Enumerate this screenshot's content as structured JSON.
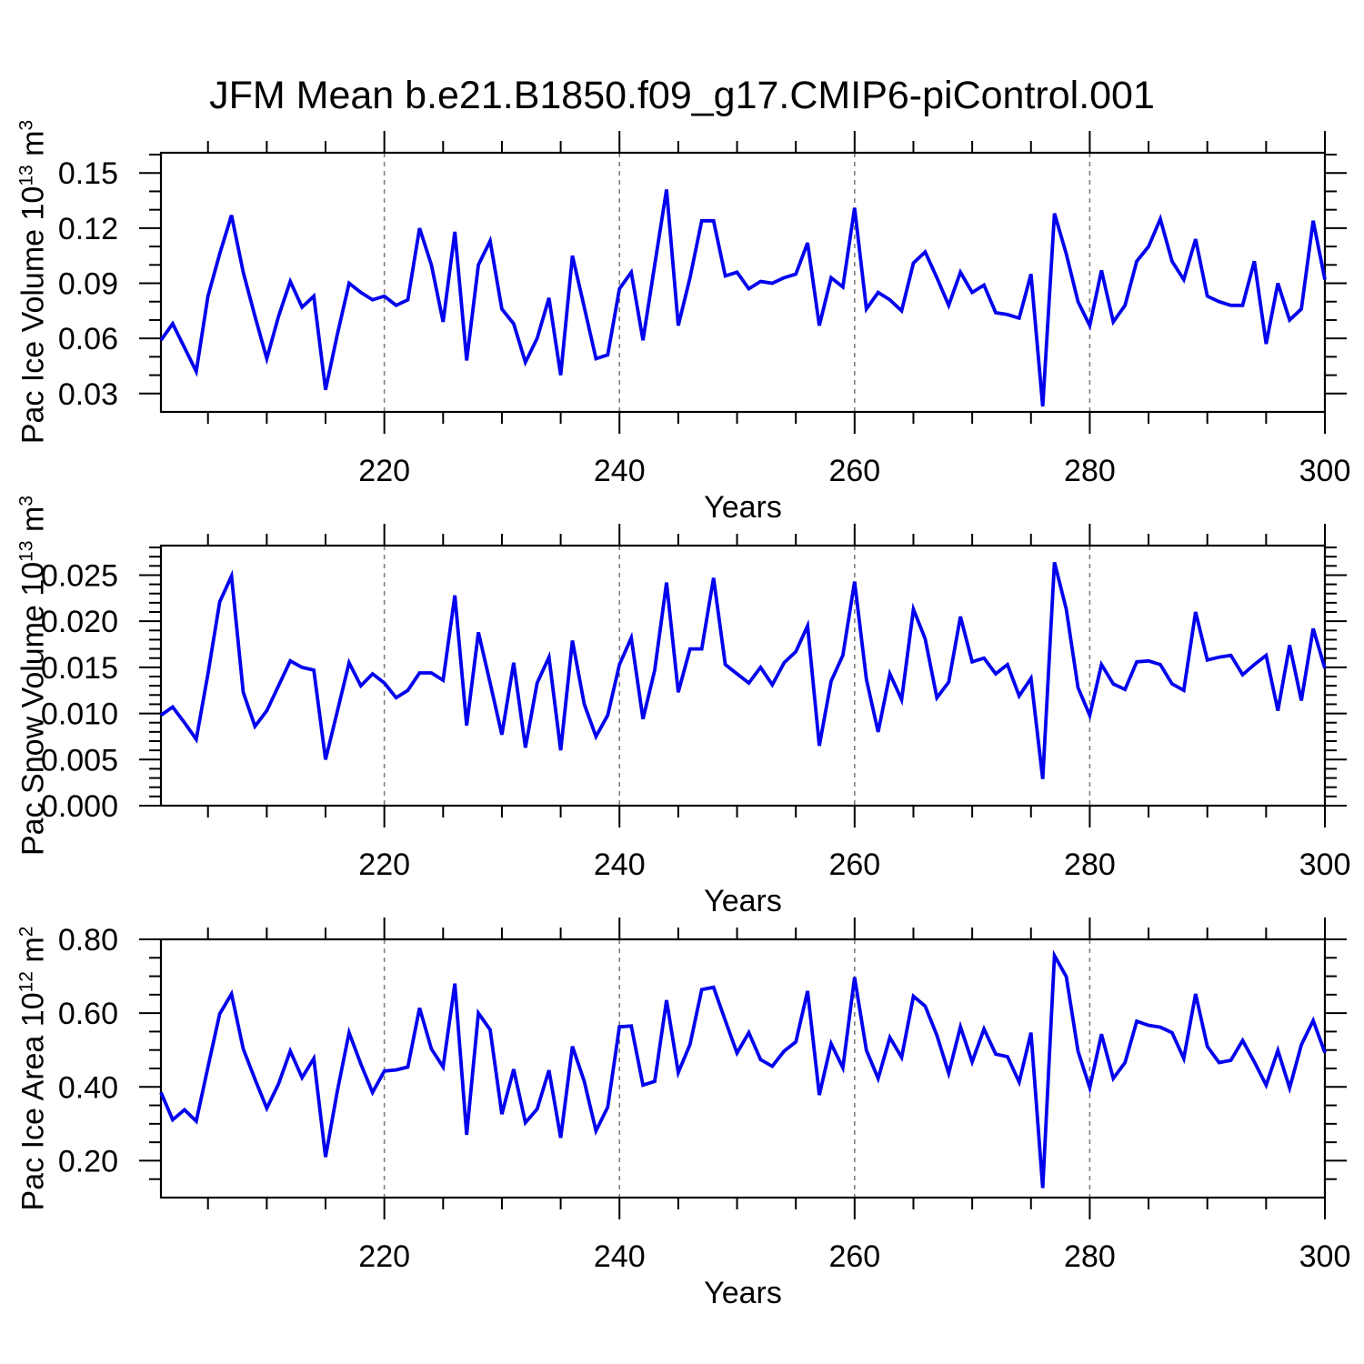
{
  "title": "JFM Mean b.e21.B1850.f09_g17.CMIP6-piControl.001",
  "style": {
    "line_color": "#0000EE",
    "grid_color": "#7f7f7f",
    "axis_color": "#000000",
    "background": "#ffffff"
  },
  "x_axis": {
    "label": "Years",
    "start": 201,
    "end": 300,
    "major_ticks": [
      220,
      240,
      260,
      280,
      300
    ],
    "minor_ticks": [
      205,
      210,
      215,
      225,
      230,
      235,
      245,
      250,
      255,
      265,
      270,
      275,
      285,
      290,
      295
    ],
    "gridlines": [
      220,
      240,
      260,
      280
    ]
  },
  "panels": [
    {
      "id": "pac-ice-volume",
      "ylabel": {
        "prefix": "Pac Ice Volume 10",
        "exp": "13",
        "mid": " m",
        "unit_exp": "3"
      },
      "ytick_labels": [
        "0.03",
        "0.06",
        "0.09",
        "0.12",
        "0.15"
      ],
      "ytick_values": [
        0.03,
        0.06,
        0.09,
        0.12,
        0.15
      ],
      "yminor_step": 0.01
    },
    {
      "id": "pac-snow-volume",
      "ylabel": {
        "prefix": "Pac Snow Volume 10",
        "exp": "13",
        "mid": " m",
        "unit_exp": "3"
      },
      "ytick_labels": [
        "0.000",
        "0.005",
        "0.010",
        "0.015",
        "0.020",
        "0.025"
      ],
      "ytick_values": [
        0.0,
        0.005,
        0.01,
        0.015,
        0.02,
        0.025
      ],
      "yminor_step": 0.001
    },
    {
      "id": "pac-ice-area",
      "ylabel": {
        "prefix": "Pac Ice Area 10",
        "exp": "12",
        "mid": " m",
        "unit_exp": "2"
      },
      "ytick_labels": [
        "0.20",
        "0.40",
        "0.60",
        "0.80"
      ],
      "ytick_values": [
        0.2,
        0.4,
        0.6,
        0.8
      ],
      "yminor_step": 0.05
    }
  ],
  "chart_data": [
    {
      "type": "line",
      "title": "JFM Mean b.e21.B1850.f09_g17.CMIP6-piControl.001",
      "xlabel": "Years",
      "ylabel": "Pac Ice Volume 10^13 m^3",
      "x_start": 201,
      "x_end": 300,
      "x_step": 1,
      "xticks": [
        220,
        240,
        260,
        280,
        300
      ],
      "ylim": [
        0.02,
        0.161
      ],
      "yticks": [
        0.03,
        0.06,
        0.09,
        0.12,
        0.15
      ],
      "grid": "vertical-dashed",
      "legend": "none",
      "values": [
        0.059,
        0.068,
        0.055,
        0.042,
        0.083,
        0.106,
        0.127,
        0.096,
        0.072,
        0.049,
        0.072,
        0.091,
        0.077,
        0.083,
        0.032,
        0.062,
        0.09,
        0.085,
        0.081,
        0.083,
        0.078,
        0.081,
        0.12,
        0.1,
        0.069,
        0.118,
        0.048,
        0.1,
        0.113,
        0.076,
        0.068,
        0.047,
        0.06,
        0.082,
        0.04,
        0.105,
        0.077,
        0.049,
        0.051,
        0.087,
        0.096,
        0.059,
        0.1,
        0.141,
        0.067,
        0.093,
        0.124,
        0.124,
        0.094,
        0.096,
        0.087,
        0.091,
        0.09,
        0.093,
        0.095,
        0.112,
        0.067,
        0.093,
        0.088,
        0.131,
        0.076,
        0.085,
        0.081,
        0.075,
        0.101,
        0.107,
        0.093,
        0.078,
        0.096,
        0.085,
        0.089,
        0.074,
        0.073,
        0.071,
        0.095,
        0.023,
        0.128,
        0.106,
        0.08,
        0.067,
        0.097,
        0.069,
        0.078,
        0.102,
        0.11,
        0.125,
        0.102,
        0.092,
        0.114,
        0.083,
        0.08,
        0.078,
        0.078,
        0.102,
        0.057,
        0.09,
        0.07,
        0.076,
        0.124,
        0.092
      ]
    },
    {
      "type": "line",
      "xlabel": "Years",
      "ylabel": "Pac Snow Volume 10^13 m^3",
      "x_start": 201,
      "x_end": 300,
      "x_step": 1,
      "xticks": [
        220,
        240,
        260,
        280,
        300
      ],
      "ylim": [
        0.0,
        0.0282
      ],
      "yticks": [
        0.0,
        0.005,
        0.01,
        0.015,
        0.02,
        0.025
      ],
      "grid": "vertical-dashed",
      "legend": "none",
      "values": [
        0.0098,
        0.0107,
        0.009,
        0.0072,
        0.0143,
        0.0221,
        0.0249,
        0.0123,
        0.0086,
        0.0103,
        0.013,
        0.0157,
        0.015,
        0.0147,
        0.005,
        0.0102,
        0.0155,
        0.013,
        0.0143,
        0.0133,
        0.0117,
        0.0125,
        0.0144,
        0.0144,
        0.0136,
        0.0228,
        0.0087,
        0.0188,
        0.0133,
        0.0077,
        0.0155,
        0.0063,
        0.0133,
        0.0161,
        0.006,
        0.0179,
        0.011,
        0.0075,
        0.0098,
        0.0153,
        0.0182,
        0.0094,
        0.0147,
        0.0242,
        0.0123,
        0.017,
        0.017,
        0.0247,
        0.0153,
        0.0143,
        0.0133,
        0.015,
        0.0131,
        0.0155,
        0.0167,
        0.0195,
        0.0065,
        0.0135,
        0.0163,
        0.0243,
        0.0137,
        0.008,
        0.0143,
        0.0115,
        0.0213,
        0.0181,
        0.0117,
        0.0134,
        0.0205,
        0.0156,
        0.016,
        0.0143,
        0.0153,
        0.0119,
        0.0138,
        0.0029,
        0.0264,
        0.0213,
        0.0128,
        0.0098,
        0.0153,
        0.0132,
        0.0126,
        0.0156,
        0.0157,
        0.0153,
        0.0132,
        0.0125,
        0.021,
        0.0158,
        0.0161,
        0.0163,
        0.0142,
        0.0153,
        0.0163,
        0.0103,
        0.0174,
        0.0114,
        0.0192,
        0.0149
      ]
    },
    {
      "type": "line",
      "xlabel": "Years",
      "ylabel": "Pac Ice Area 10^12 m^2",
      "x_start": 201,
      "x_end": 300,
      "x_step": 1,
      "xticks": [
        220,
        240,
        260,
        280,
        300
      ],
      "ylim": [
        0.1,
        0.8
      ],
      "yticks": [
        0.2,
        0.4,
        0.6,
        0.8
      ],
      "grid": "vertical-dashed",
      "legend": "none",
      "values": [
        0.385,
        0.311,
        0.338,
        0.307,
        0.454,
        0.598,
        0.652,
        0.503,
        0.421,
        0.342,
        0.408,
        0.497,
        0.425,
        0.477,
        0.21,
        0.388,
        0.547,
        0.462,
        0.385,
        0.443,
        0.446,
        0.454,
        0.614,
        0.503,
        0.454,
        0.68,
        0.27,
        0.6,
        0.555,
        0.326,
        0.448,
        0.303,
        0.34,
        0.445,
        0.262,
        0.51,
        0.415,
        0.281,
        0.345,
        0.563,
        0.565,
        0.405,
        0.415,
        0.635,
        0.439,
        0.515,
        0.664,
        0.67,
        0.58,
        0.492,
        0.547,
        0.474,
        0.456,
        0.497,
        0.522,
        0.66,
        0.378,
        0.517,
        0.452,
        0.697,
        0.499,
        0.423,
        0.534,
        0.48,
        0.646,
        0.619,
        0.54,
        0.437,
        0.563,
        0.468,
        0.557,
        0.489,
        0.482,
        0.413,
        0.547,
        0.126,
        0.756,
        0.699,
        0.497,
        0.398,
        0.543,
        0.423,
        0.466,
        0.578,
        0.567,
        0.562,
        0.547,
        0.477,
        0.652,
        0.51,
        0.466,
        0.472,
        0.526,
        0.468,
        0.405,
        0.499,
        0.397,
        0.514,
        0.58,
        0.493
      ]
    }
  ]
}
